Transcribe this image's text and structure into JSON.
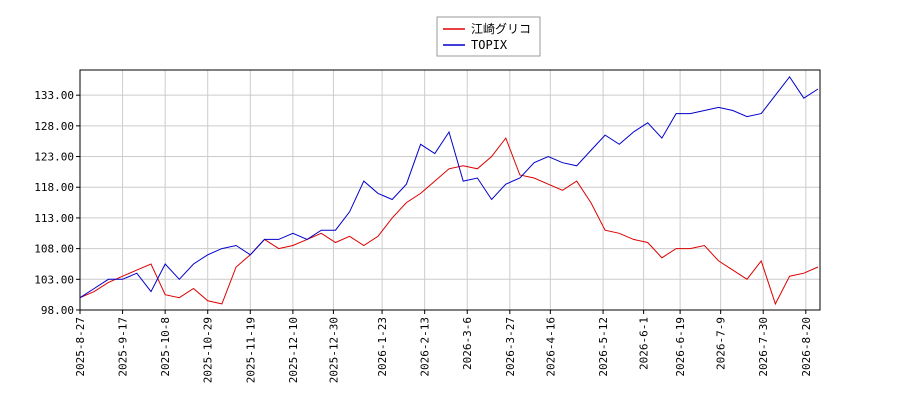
{
  "chart_data": {
    "type": "line",
    "x": [
      "2025-8-27",
      "2025-9-3",
      "2025-9-10",
      "2025-9-17",
      "2025-9-24",
      "2025-10-1",
      "2025-10-8",
      "2025-10-15",
      "2025-10-22",
      "2025-10-29",
      "2025-11-5",
      "2025-11-12",
      "2025-11-19",
      "2025-11-26",
      "2025-12-3",
      "2025-12-10",
      "2025-12-17",
      "2025-12-24",
      "2025-12-31",
      "2026-1-7",
      "2026-1-14",
      "2026-1-21",
      "2026-1-28",
      "2026-2-4",
      "2026-2-11",
      "2026-2-18",
      "2026-2-25",
      "2026-3-4",
      "2026-3-11",
      "2026-3-18",
      "2026-3-25",
      "2026-4-1",
      "2026-4-8",
      "2026-4-15",
      "2026-4-22",
      "2026-4-29",
      "2026-5-6",
      "2026-5-13",
      "2026-5-20",
      "2026-5-27",
      "2026-6-3",
      "2026-6-10",
      "2026-6-17",
      "2026-6-24",
      "2026-7-1",
      "2026-7-8",
      "2026-7-15",
      "2026-7-22",
      "2026-7-29",
      "2026-8-5",
      "2026-8-12",
      "2026-8-19",
      "2026-8-26"
    ],
    "series": [
      {
        "name": "江崎グリコ",
        "color": "#dd0000",
        "values": [
          100,
          101,
          102.5,
          103.5,
          104.5,
          105.5,
          100.5,
          100,
          101.5,
          99.5,
          99,
          105,
          107,
          109.5,
          108,
          108.5,
          109.5,
          110.5,
          109,
          110,
          108.5,
          110,
          113,
          115.5,
          117,
          119,
          121,
          121.5,
          121,
          123,
          126,
          120,
          119.5,
          118.5,
          117.5,
          119,
          115.5,
          111,
          110.5,
          109.5,
          109,
          106.5,
          108,
          108,
          108.5,
          106,
          104.5,
          103,
          106,
          99,
          103.5,
          104,
          105
        ]
      },
      {
        "name": "TOPIX",
        "color": "#0000cc",
        "values": [
          100,
          101.5,
          103,
          103,
          104,
          101,
          105.5,
          103,
          105.5,
          107,
          108,
          108.5,
          107,
          109.5,
          109.5,
          110.5,
          109.5,
          111,
          111,
          114,
          119,
          117,
          116,
          118.5,
          125,
          123.5,
          127,
          119,
          119.5,
          116,
          118.5,
          119.5,
          122,
          123,
          122,
          121.5,
          124,
          126.5,
          125,
          127,
          128.5,
          126,
          130,
          130,
          130.5,
          131,
          130.5,
          129.5,
          130,
          133,
          136,
          132.5,
          134
        ]
      }
    ],
    "xlim": [
      "2025-8-27",
      "2026-8-27"
    ],
    "xticks": [
      "2025-8-27",
      "2025-9-17",
      "2025-10-8",
      "2025-10-29",
      "2025-11-19",
      "2025-12-10",
      "2025-12-30",
      "2026-1-23",
      "2026-2-13",
      "2026-3-6",
      "2026-3-27",
      "2026-4-16",
      "2026-5-12",
      "2026-6-1",
      "2026-6-19",
      "2026-7-9",
      "2026-7-30",
      "2026-8-20"
    ],
    "ylim": [
      98,
      137.1
    ],
    "yticks": [
      {
        "value": 98,
        "label": "98.00"
      },
      {
        "value": 103,
        "label": "103.00"
      },
      {
        "value": 108,
        "label": "108.00"
      },
      {
        "value": 113,
        "label": "113.00"
      },
      {
        "value": 118,
        "label": "118.00"
      },
      {
        "value": 123,
        "label": "123.00"
      },
      {
        "value": 128,
        "label": "128.00"
      },
      {
        "value": 133,
        "label": "133.00"
      }
    ],
    "grid": true,
    "legend": "top"
  }
}
